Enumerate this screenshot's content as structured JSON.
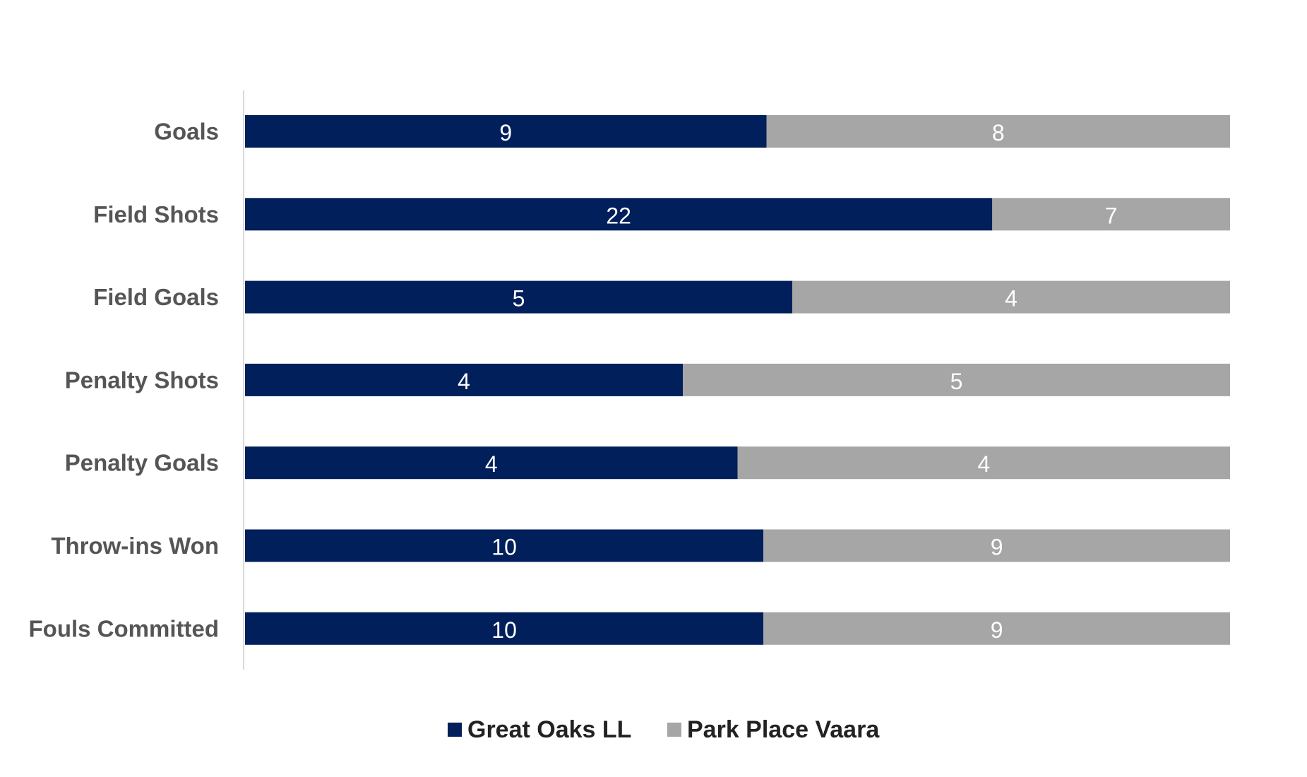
{
  "chart_data": {
    "type": "bar",
    "orientation": "horizontal",
    "stacked": "percent",
    "categories": [
      "Goals",
      "Field Shots",
      "Field Goals",
      "Penalty Shots",
      "Penalty Goals",
      "Throw-ins Won",
      "Fouls Committed"
    ],
    "series": [
      {
        "name": "Great Oaks LL",
        "color": "#001f5b",
        "values": [
          9,
          22,
          5,
          4,
          4,
          10,
          10
        ]
      },
      {
        "name": "Park Place Vaara",
        "color": "#a6a6a6",
        "values": [
          8,
          7,
          4,
          5,
          4,
          9,
          9
        ]
      }
    ],
    "title": "",
    "xlabel": "",
    "ylabel": "",
    "grid": false,
    "legend": "bottom"
  }
}
